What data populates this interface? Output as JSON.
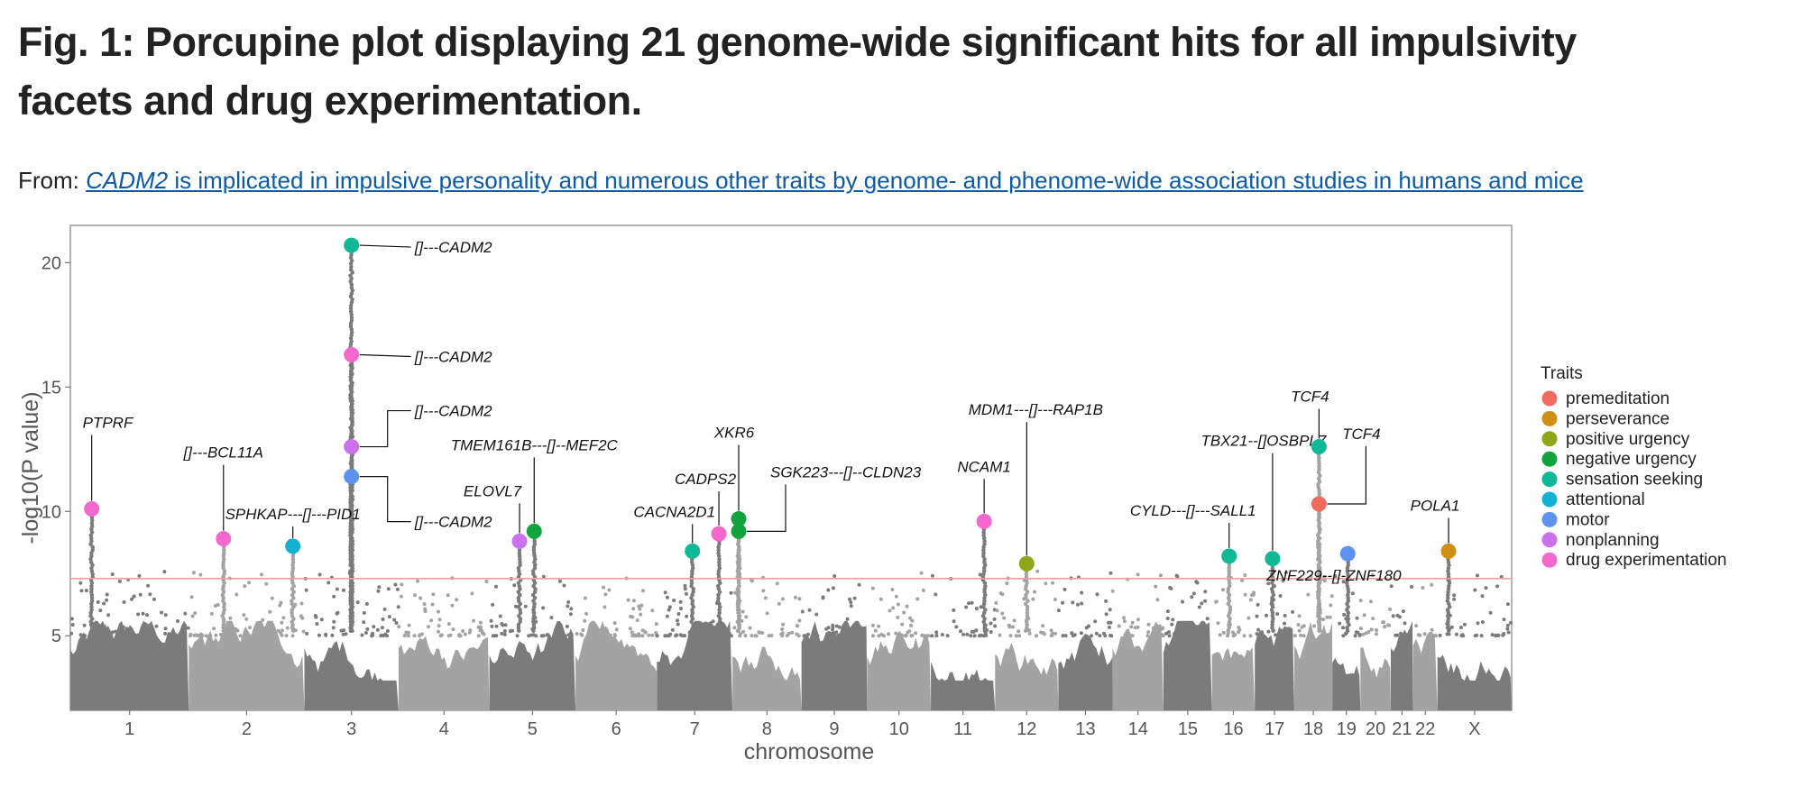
{
  "figure": {
    "title": "Fig. 1: Porcupine plot displaying 21 genome-wide significant hits for all impulsivity facets and drug experimentation.",
    "from_label": "From: ",
    "source_gene": "CADM2",
    "source_rest": " is implicated in impulsive personality and numerous other traits by genome- and phenome-wide association studies in humans and mice"
  },
  "chart_data": {
    "type": "scatter",
    "subtype": "manhattan/porcupine",
    "xlabel": "chromosome",
    "ylabel": "-log10(P value)",
    "ylim": [
      2,
      21.5
    ],
    "yticks": [
      5,
      10,
      15,
      20
    ],
    "significance_threshold": 7.3,
    "chromosomes": [
      {
        "label": "1",
        "rel_len": 249
      },
      {
        "label": "2",
        "rel_len": 243
      },
      {
        "label": "3",
        "rel_len": 198
      },
      {
        "label": "4",
        "rel_len": 191
      },
      {
        "label": "5",
        "rel_len": 181
      },
      {
        "label": "6",
        "rel_len": 171
      },
      {
        "label": "7",
        "rel_len": 159
      },
      {
        "label": "8",
        "rel_len": 145
      },
      {
        "label": "9",
        "rel_len": 138
      },
      {
        "label": "10",
        "rel_len": 134
      },
      {
        "label": "11",
        "rel_len": 135
      },
      {
        "label": "12",
        "rel_len": 133
      },
      {
        "label": "13",
        "rel_len": 114
      },
      {
        "label": "14",
        "rel_len": 107
      },
      {
        "label": "15",
        "rel_len": 102
      },
      {
        "label": "16",
        "rel_len": 90
      },
      {
        "label": "17",
        "rel_len": 83
      },
      {
        "label": "18",
        "rel_len": 80
      },
      {
        "label": "19",
        "rel_len": 59
      },
      {
        "label": "20",
        "rel_len": 64
      },
      {
        "label": "21",
        "rel_len": 47
      },
      {
        "label": "22",
        "rel_len": 51
      },
      {
        "label": "X",
        "rel_len": 156
      }
    ],
    "legend": {
      "title": "Traits",
      "items": [
        {
          "name": "premeditation",
          "color": "#ee6b5e"
        },
        {
          "name": "perseverance",
          "color": "#cf8f12"
        },
        {
          "name": "positive urgency",
          "color": "#8ea617"
        },
        {
          "name": "negative urgency",
          "color": "#12a43c"
        },
        {
          "name": "sensation seeking",
          "color": "#10b896"
        },
        {
          "name": "attentional",
          "color": "#13b1d2"
        },
        {
          "name": "motor",
          "color": "#5d93ee"
        },
        {
          "name": "nonplanning",
          "color": "#cc71ee"
        },
        {
          "name": "drug experimentation",
          "color": "#f268ce"
        }
      ]
    },
    "hits": [
      {
        "gene": "PTPRF",
        "chr": "1",
        "pos": 0.18,
        "y": 10.1,
        "trait": "drug experimentation"
      },
      {
        "gene": "[]---BCL11A",
        "chr": "2",
        "pos": 0.3,
        "y": 8.9,
        "trait": "drug experimentation"
      },
      {
        "gene": "SPHKAP---[]---PID1",
        "chr": "2",
        "pos": 0.9,
        "y": 8.6,
        "trait": "attentional"
      },
      {
        "gene": "[]---CADM2",
        "chr": "3",
        "pos": 0.5,
        "y": 20.7,
        "trait": "sensation seeking"
      },
      {
        "gene": "[]---CADM2",
        "chr": "3",
        "pos": 0.5,
        "y": 16.3,
        "trait": "drug experimentation"
      },
      {
        "gene": "[]---CADM2",
        "chr": "3",
        "pos": 0.5,
        "y": 12.6,
        "trait": "nonplanning"
      },
      {
        "gene": "[]---CADM2",
        "chr": "3",
        "pos": 0.5,
        "y": 11.4,
        "trait": "motor"
      },
      {
        "gene": "ELOVL7",
        "chr": "5",
        "pos": 0.35,
        "y": 8.8,
        "trait": "nonplanning"
      },
      {
        "gene": "TMEM161B---[]--MEF2C",
        "chr": "5",
        "pos": 0.52,
        "y": 9.2,
        "trait": "negative urgency"
      },
      {
        "gene": "CACNA2D1",
        "chr": "7",
        "pos": 0.47,
        "y": 8.4,
        "trait": "sensation seeking"
      },
      {
        "gene": "CADPS2",
        "chr": "7",
        "pos": 0.82,
        "y": 9.1,
        "trait": "drug experimentation"
      },
      {
        "gene": "XKR6",
        "chr": "8",
        "pos": 0.09,
        "y": 9.7,
        "trait": "negative urgency"
      },
      {
        "gene": "SGK223---[]--CLDN23",
        "chr": "8",
        "pos": 0.09,
        "y": 9.2,
        "trait": "negative urgency"
      },
      {
        "gene": "NCAM1",
        "chr": "11",
        "pos": 0.83,
        "y": 9.6,
        "trait": "drug experimentation"
      },
      {
        "gene": "MDM1---[]---RAP1B",
        "chr": "12",
        "pos": 0.5,
        "y": 7.9,
        "trait": "positive urgency"
      },
      {
        "gene": "CYLD---[]---SALL1",
        "chr": "16",
        "pos": 0.4,
        "y": 8.2,
        "trait": "sensation seeking"
      },
      {
        "gene": "TBX21--[]OSBPL7",
        "chr": "17",
        "pos": 0.45,
        "y": 8.1,
        "trait": "sensation seeking"
      },
      {
        "gene": "TCF4",
        "chr": "18",
        "pos": 0.65,
        "y": 12.6,
        "trait": "sensation seeking"
      },
      {
        "gene": "TCF4",
        "chr": "18",
        "pos": 0.65,
        "y": 10.3,
        "trait": "premeditation"
      },
      {
        "gene": "ZNF229--[]-ZNF180",
        "chr": "19",
        "pos": 0.55,
        "y": 8.3,
        "trait": "motor"
      },
      {
        "gene": "POLA1",
        "chr": "X",
        "pos": 0.15,
        "y": 8.4,
        "trait": "perseverance"
      }
    ]
  }
}
